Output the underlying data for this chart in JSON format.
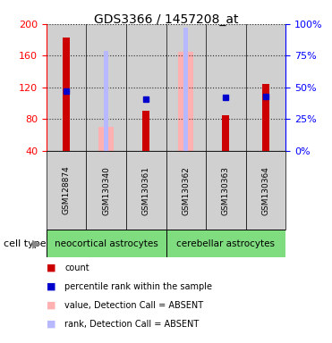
{
  "title": "GDS3366 / 1457208_at",
  "samples": [
    "GSM128874",
    "GSM130340",
    "GSM130361",
    "GSM130362",
    "GSM130363",
    "GSM130364"
  ],
  "ylim_left": [
    40,
    200
  ],
  "ylim_right": [
    0,
    100
  ],
  "yticks_left": [
    40,
    80,
    120,
    160,
    200
  ],
  "yticks_right": [
    0,
    25,
    50,
    75,
    100
  ],
  "count_values": [
    183,
    null,
    91,
    null,
    85,
    124
  ],
  "rank_values": [
    47,
    null,
    41,
    null,
    42,
    43
  ],
  "absent_value_bars": [
    null,
    70,
    null,
    165,
    null,
    null
  ],
  "absent_rank_bars": [
    null,
    79,
    null,
    97,
    null,
    null
  ],
  "count_color": "#cc0000",
  "rank_color": "#0000cc",
  "absent_value_color": "#ffb0b0",
  "absent_rank_color": "#b8b8ff",
  "bar_bg_color": "#d0d0d0",
  "group_green": "#7fdd7f",
  "legend_items": [
    {
      "color": "#cc0000",
      "label": "count"
    },
    {
      "color": "#0000cc",
      "label": "percentile rank within the sample"
    },
    {
      "color": "#ffb0b0",
      "label": "value, Detection Call = ABSENT"
    },
    {
      "color": "#b8b8ff",
      "label": "rank, Detection Call = ABSENT"
    }
  ]
}
